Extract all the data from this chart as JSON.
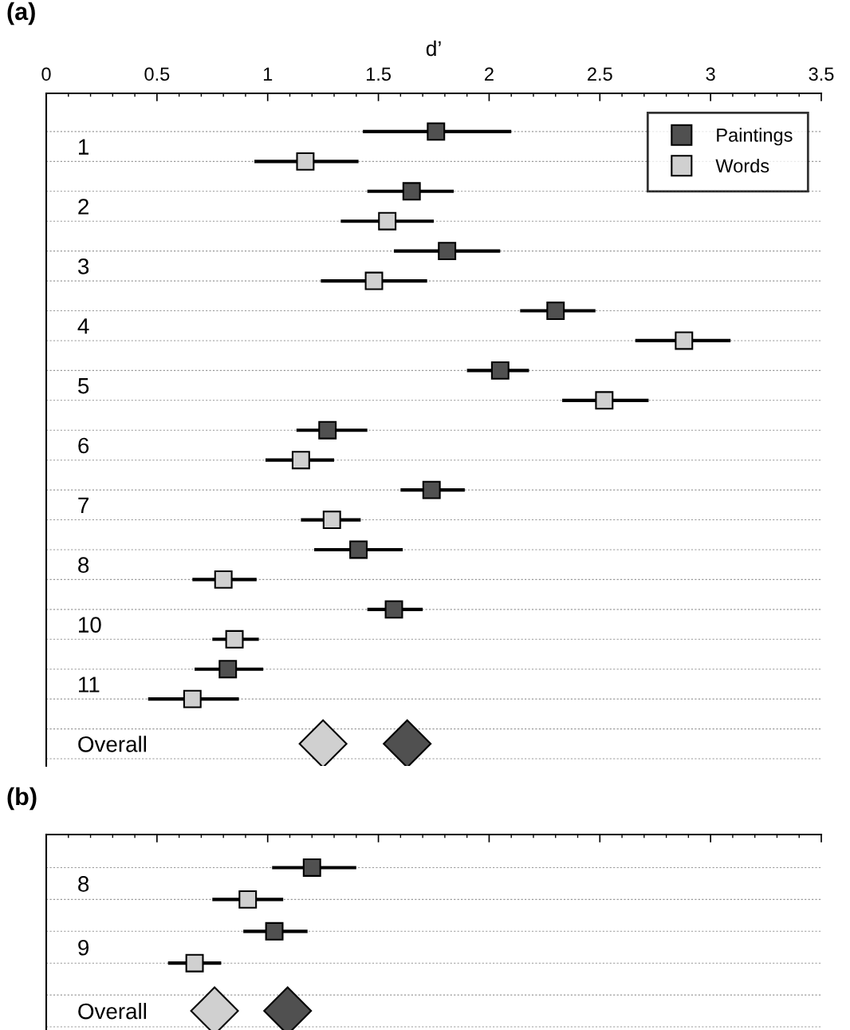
{
  "chart_data": [
    {
      "type": "scatter",
      "orientation": "horizontal",
      "title": "(a)",
      "xlabel": "d’",
      "categories": [
        "1",
        "2",
        "3",
        "4",
        "5",
        "6",
        "7",
        "8",
        "10",
        "11",
        "Overall"
      ],
      "xlim": [
        0,
        3.5
      ],
      "xticks": [
        0,
        0.5,
        1,
        1.5,
        2,
        2.5,
        3,
        3.5
      ],
      "grid": "y",
      "legend": "top right",
      "series": [
        {
          "name": "Paintings",
          "color": "#505050",
          "marker": "square",
          "values": [
            1.76,
            1.65,
            1.81,
            2.3,
            2.05,
            1.27,
            1.74,
            1.41,
            1.57,
            0.82,
            null
          ],
          "errors": [
            [
              1.43,
              2.1
            ],
            [
              1.45,
              1.84
            ],
            [
              1.57,
              2.05
            ],
            [
              2.14,
              2.48
            ],
            [
              1.9,
              2.18
            ],
            [
              1.13,
              1.45
            ],
            [
              1.6,
              1.89
            ],
            [
              1.21,
              1.61
            ],
            [
              1.45,
              1.7
            ],
            [
              0.67,
              0.98
            ],
            null
          ]
        },
        {
          "name": "Words",
          "color": "#d0d0d0",
          "marker": "square",
          "values": [
            1.17,
            1.54,
            1.48,
            2.88,
            2.52,
            1.15,
            1.29,
            0.8,
            0.85,
            0.66,
            null
          ],
          "errors": [
            [
              0.94,
              1.41
            ],
            [
              1.33,
              1.75
            ],
            [
              1.24,
              1.72
            ],
            [
              2.66,
              3.09
            ],
            [
              2.33,
              2.72
            ],
            [
              0.99,
              1.3
            ],
            [
              1.15,
              1.42
            ],
            [
              0.66,
              0.95
            ],
            [
              0.75,
              0.96
            ],
            [
              0.46,
              0.87
            ],
            null
          ]
        },
        {
          "color": "#d0d0d0",
          "marker": "diamond",
          "values": [
            null,
            null,
            null,
            null,
            null,
            null,
            null,
            null,
            null,
            null,
            1.25
          ]
        },
        {
          "color": "#505050",
          "marker": "diamond",
          "values": [
            null,
            null,
            null,
            null,
            null,
            null,
            null,
            null,
            null,
            null,
            1.63
          ]
        }
      ]
    },
    {
      "type": "scatter",
      "orientation": "horizontal",
      "title": "(b)",
      "categories": [
        "8",
        "9",
        "Overall"
      ],
      "xlim": [
        0,
        3.5
      ],
      "xticks": [
        0,
        0.5,
        1,
        1.5,
        2,
        2.5,
        3,
        3.5
      ],
      "tick_labels": "y",
      "grid": "y",
      "series": [
        {
          "color": "#505050",
          "marker": "square",
          "values": [
            1.2,
            1.03,
            null
          ],
          "errors": [
            [
              1.02,
              1.4
            ],
            [
              0.89,
              1.18
            ],
            null
          ]
        },
        {
          "color": "#d0d0d0",
          "marker": "square",
          "values": [
            0.91,
            0.67,
            null
          ],
          "errors": [
            [
              0.75,
              1.07
            ],
            [
              0.55,
              0.79
            ],
            null
          ]
        },
        {
          "color": "#d0d0d0",
          "marker": "diamond",
          "values": [
            null,
            null,
            0.76
          ]
        },
        {
          "color": "#505050",
          "marker": "diamond",
          "values": [
            null,
            null,
            1.09
          ]
        }
      ]
    }
  ]
}
